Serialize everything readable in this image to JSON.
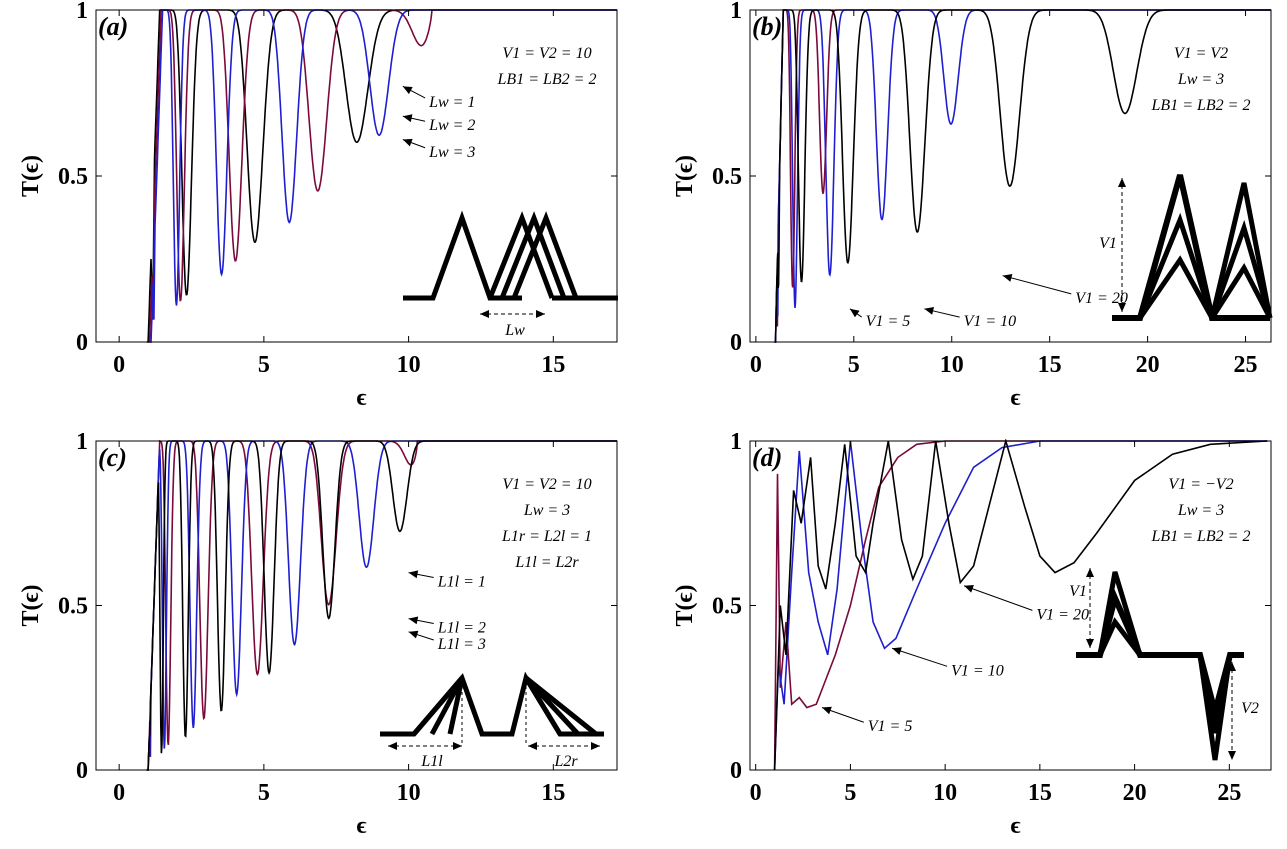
{
  "colors": {
    "black": "#000000",
    "blue": "#1f1fd0",
    "maroon": "#7a0a3a"
  },
  "chart_data": [
    {
      "type": "line",
      "panel": "(a)",
      "xlabel": "ϵ",
      "ylabel": "T(ϵ)",
      "xlim": [
        -0.8,
        17.2
      ],
      "ylim": [
        0,
        1
      ],
      "xticks": [
        "0",
        "5",
        "10",
        "15"
      ],
      "yticks": [
        "0",
        "0.5",
        "1"
      ],
      "params": [
        "V1 = V2 = 10",
        "LB1 = LB2 = 2"
      ],
      "series": [
        {
          "name": "Lw = 1",
          "color": "#000000",
          "threshold": 1.0,
          "freq": 2.6,
          "floor": 0.06,
          "settle": 10.5
        },
        {
          "name": "Lw = 2",
          "color": "#7a0a3a",
          "threshold": 1.05,
          "freq": 2.9,
          "floor": 0.06,
          "settle": 10.8
        },
        {
          "name": "Lw = 3",
          "color": "#1f1fd0",
          "threshold": 1.1,
          "freq": 3.2,
          "floor": 0.06,
          "settle": 11.2
        }
      ],
      "annotations": [
        {
          "text": "Lw = 1",
          "at": [
            10.5,
            0.72
          ],
          "target": [
            9.8,
            0.77
          ]
        },
        {
          "text": "Lw = 2",
          "at": [
            10.5,
            0.65
          ],
          "target": [
            9.8,
            0.68
          ]
        },
        {
          "text": "Lw = 3",
          "at": [
            10.5,
            0.57
          ],
          "target": [
            9.8,
            0.61
          ]
        }
      ],
      "legend_placement": "top-right"
    },
    {
      "type": "line",
      "panel": "(b)",
      "xlabel": "ϵ",
      "ylabel": "T(ϵ)",
      "xlim": [
        -0.3,
        26.3
      ],
      "ylim": [
        0,
        1
      ],
      "xticks": [
        "0",
        "5",
        "10",
        "15",
        "20",
        "25"
      ],
      "yticks": [
        "0",
        "0.5",
        "1"
      ],
      "params": [
        "V1 = V2",
        "Lw = 3",
        "LB1 = LB2 = 2"
      ],
      "series": [
        {
          "name": "V1 = 5",
          "color": "#7a0a3a",
          "threshold": 1.0,
          "freq": 3.2,
          "floor": 0.03,
          "settle": 5.0
        },
        {
          "name": "V1 = 10",
          "color": "#1f1fd0",
          "threshold": 1.0,
          "freq": 3.0,
          "floor": 0.05,
          "settle": 12.0
        },
        {
          "name": "V1 = 20",
          "color": "#000000",
          "threshold": 1.0,
          "freq": 2.6,
          "floor": 0.15,
          "settle": 23.0
        }
      ],
      "annotations": [
        {
          "text": "V1 = 5",
          "at": [
            5.3,
            0.06
          ],
          "target": [
            4.8,
            0.1
          ]
        },
        {
          "text": "V1 = 10",
          "at": [
            10.3,
            0.06
          ],
          "target": [
            8.6,
            0.1
          ]
        },
        {
          "text": "V1 = 20",
          "at": [
            16.0,
            0.13
          ],
          "target": [
            12.6,
            0.2
          ]
        }
      ],
      "legend_placement": "top-right"
    },
    {
      "type": "line",
      "panel": "(c)",
      "xlabel": "ϵ",
      "ylabel": "T(ϵ)",
      "xlim": [
        -0.8,
        17.2
      ],
      "ylim": [
        0,
        1
      ],
      "xticks": [
        "0",
        "5",
        "10",
        "15"
      ],
      "yticks": [
        "0",
        "0.5",
        "1"
      ],
      "params": [
        "V1 = V2 = 10",
        "Lw = 3",
        "L1r = L2l = 1",
        "L1l = L2r"
      ],
      "series": [
        {
          "name": "L1l = 1",
          "color": "#7a0a3a",
          "threshold": 1.0,
          "freq": 3.6,
          "floor": 0.03,
          "settle": 10.3
        },
        {
          "name": "L1l = 2",
          "color": "#1f1fd0",
          "threshold": 1.0,
          "freq": 4.0,
          "floor": 0.03,
          "settle": 10.6
        },
        {
          "name": "L1l = 3",
          "color": "#000000",
          "threshold": 1.0,
          "freq": 4.4,
          "floor": 0.02,
          "settle": 10.9
        }
      ],
      "annotations": [
        {
          "text": "L1l = 1",
          "at": [
            10.8,
            0.57
          ],
          "target": [
            10.0,
            0.6
          ]
        },
        {
          "text": "L1l = 2",
          "at": [
            10.8,
            0.43
          ],
          "target": [
            10.0,
            0.46
          ]
        },
        {
          "text": "L1l = 3",
          "at": [
            10.8,
            0.38
          ],
          "target": [
            10.0,
            0.42
          ]
        }
      ],
      "legend_placement": "top-right"
    },
    {
      "type": "line",
      "panel": "(d)",
      "xlabel": "ϵ",
      "ylabel": "T(ϵ)",
      "xlim": [
        -0.3,
        27.2
      ],
      "ylim": [
        0,
        1
      ],
      "xticks": [
        "0",
        "5",
        "10",
        "15",
        "20",
        "25"
      ],
      "yticks": [
        "0",
        "0.5",
        "1"
      ],
      "params": [
        "V1 = −V2",
        "Lw = 3",
        "LB1 = LB2 = 2"
      ],
      "series": [
        {
          "name": "V1 = 5",
          "color": "#7a0a3a",
          "points": [
            [
              1.0,
              0
            ],
            [
              1.15,
              0.9
            ],
            [
              1.3,
              0.25
            ],
            [
              1.6,
              0.45
            ],
            [
              1.9,
              0.2
            ],
            [
              2.3,
              0.22
            ],
            [
              2.7,
              0.19
            ],
            [
              3.2,
              0.2
            ],
            [
              3.6,
              0.26
            ],
            [
              4.2,
              0.35
            ],
            [
              5.0,
              0.5
            ],
            [
              5.8,
              0.7
            ],
            [
              6.5,
              0.86
            ],
            [
              7.5,
              0.95
            ],
            [
              8.5,
              0.99
            ],
            [
              10,
              1
            ],
            [
              27,
              1
            ]
          ]
        },
        {
          "name": "V1 = 10",
          "color": "#1f1fd0",
          "points": [
            [
              1.0,
              0
            ],
            [
              1.2,
              0.32
            ],
            [
              1.5,
              0.2
            ],
            [
              1.9,
              0.6
            ],
            [
              2.3,
              0.97
            ],
            [
              2.8,
              0.6
            ],
            [
              3.3,
              0.45
            ],
            [
              3.8,
              0.35
            ],
            [
              4.3,
              0.55
            ],
            [
              5.0,
              1.0
            ],
            [
              5.6,
              0.7
            ],
            [
              6.2,
              0.45
            ],
            [
              6.8,
              0.37
            ],
            [
              7.4,
              0.4
            ],
            [
              8.5,
              0.55
            ],
            [
              10,
              0.75
            ],
            [
              11.5,
              0.92
            ],
            [
              13,
              0.98
            ],
            [
              15,
              1
            ],
            [
              27,
              1
            ]
          ]
        },
        {
          "name": "V1 = 20",
          "color": "#000000",
          "points": [
            [
              1.0,
              0
            ],
            [
              1.3,
              0.5
            ],
            [
              1.6,
              0.35
            ],
            [
              2.0,
              0.85
            ],
            [
              2.4,
              0.75
            ],
            [
              2.9,
              0.95
            ],
            [
              3.3,
              0.62
            ],
            [
              3.7,
              0.55
            ],
            [
              4.2,
              0.75
            ],
            [
              4.7,
              0.99
            ],
            [
              5.3,
              0.65
            ],
            [
              5.8,
              0.6
            ],
            [
              6.2,
              0.75
            ],
            [
              7.0,
              1.0
            ],
            [
              7.7,
              0.7
            ],
            [
              8.3,
              0.58
            ],
            [
              8.8,
              0.65
            ],
            [
              9.5,
              1.0
            ],
            [
              10.2,
              0.75
            ],
            [
              10.8,
              0.57
            ],
            [
              11.5,
              0.62
            ],
            [
              13.2,
              1.0
            ],
            [
              14.2,
              0.8
            ],
            [
              15.0,
              0.65
            ],
            [
              15.8,
              0.6
            ],
            [
              16.8,
              0.63
            ],
            [
              18,
              0.72
            ],
            [
              20,
              0.88
            ],
            [
              22,
              0.96
            ],
            [
              24,
              0.99
            ],
            [
              27,
              1
            ]
          ]
        }
      ],
      "annotations": [
        {
          "text": "V1 = 5",
          "at": [
            5.6,
            0.13
          ],
          "target": [
            3.5,
            0.19
          ]
        },
        {
          "text": "V1 = 10",
          "at": [
            10.0,
            0.3
          ],
          "target": [
            7.2,
            0.37
          ]
        },
        {
          "text": "V1 = 20",
          "at": [
            14.5,
            0.47
          ],
          "target": [
            11.0,
            0.56
          ]
        }
      ],
      "legend_placement": "top-right"
    }
  ],
  "insets": {
    "a": {
      "label": "Lw"
    },
    "b": {
      "label": "V1"
    },
    "c": {
      "label_left": "L1l",
      "label_right": "L2r"
    },
    "d": {
      "label_top": "V1",
      "label_bottom": "V2"
    }
  }
}
